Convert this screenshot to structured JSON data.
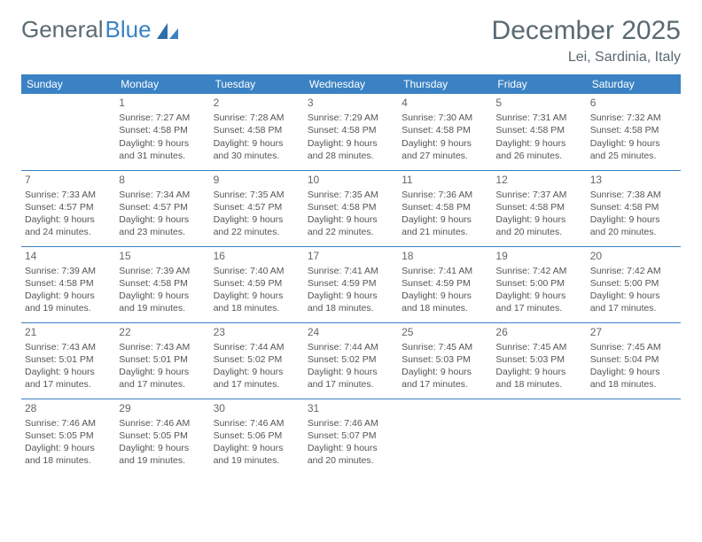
{
  "logo": {
    "word1": "General",
    "word2": "Blue"
  },
  "title": "December 2025",
  "location": "Lei, Sardinia, Italy",
  "colors": {
    "header_bg": "#3b82c4",
    "header_text": "#ffffff",
    "border": "#3b82c4",
    "body_text": "#555555",
    "title_text": "#5a6a72",
    "background": "#ffffff"
  },
  "day_headers": [
    "Sunday",
    "Monday",
    "Tuesday",
    "Wednesday",
    "Thursday",
    "Friday",
    "Saturday"
  ],
  "weeks": [
    [
      {
        "num": "",
        "lines": []
      },
      {
        "num": "1",
        "lines": [
          "Sunrise: 7:27 AM",
          "Sunset: 4:58 PM",
          "Daylight: 9 hours",
          "and 31 minutes."
        ]
      },
      {
        "num": "2",
        "lines": [
          "Sunrise: 7:28 AM",
          "Sunset: 4:58 PM",
          "Daylight: 9 hours",
          "and 30 minutes."
        ]
      },
      {
        "num": "3",
        "lines": [
          "Sunrise: 7:29 AM",
          "Sunset: 4:58 PM",
          "Daylight: 9 hours",
          "and 28 minutes."
        ]
      },
      {
        "num": "4",
        "lines": [
          "Sunrise: 7:30 AM",
          "Sunset: 4:58 PM",
          "Daylight: 9 hours",
          "and 27 minutes."
        ]
      },
      {
        "num": "5",
        "lines": [
          "Sunrise: 7:31 AM",
          "Sunset: 4:58 PM",
          "Daylight: 9 hours",
          "and 26 minutes."
        ]
      },
      {
        "num": "6",
        "lines": [
          "Sunrise: 7:32 AM",
          "Sunset: 4:58 PM",
          "Daylight: 9 hours",
          "and 25 minutes."
        ]
      }
    ],
    [
      {
        "num": "7",
        "lines": [
          "Sunrise: 7:33 AM",
          "Sunset: 4:57 PM",
          "Daylight: 9 hours",
          "and 24 minutes."
        ]
      },
      {
        "num": "8",
        "lines": [
          "Sunrise: 7:34 AM",
          "Sunset: 4:57 PM",
          "Daylight: 9 hours",
          "and 23 minutes."
        ]
      },
      {
        "num": "9",
        "lines": [
          "Sunrise: 7:35 AM",
          "Sunset: 4:57 PM",
          "Daylight: 9 hours",
          "and 22 minutes."
        ]
      },
      {
        "num": "10",
        "lines": [
          "Sunrise: 7:35 AM",
          "Sunset: 4:58 PM",
          "Daylight: 9 hours",
          "and 22 minutes."
        ]
      },
      {
        "num": "11",
        "lines": [
          "Sunrise: 7:36 AM",
          "Sunset: 4:58 PM",
          "Daylight: 9 hours",
          "and 21 minutes."
        ]
      },
      {
        "num": "12",
        "lines": [
          "Sunrise: 7:37 AM",
          "Sunset: 4:58 PM",
          "Daylight: 9 hours",
          "and 20 minutes."
        ]
      },
      {
        "num": "13",
        "lines": [
          "Sunrise: 7:38 AM",
          "Sunset: 4:58 PM",
          "Daylight: 9 hours",
          "and 20 minutes."
        ]
      }
    ],
    [
      {
        "num": "14",
        "lines": [
          "Sunrise: 7:39 AM",
          "Sunset: 4:58 PM",
          "Daylight: 9 hours",
          "and 19 minutes."
        ]
      },
      {
        "num": "15",
        "lines": [
          "Sunrise: 7:39 AM",
          "Sunset: 4:58 PM",
          "Daylight: 9 hours",
          "and 19 minutes."
        ]
      },
      {
        "num": "16",
        "lines": [
          "Sunrise: 7:40 AM",
          "Sunset: 4:59 PM",
          "Daylight: 9 hours",
          "and 18 minutes."
        ]
      },
      {
        "num": "17",
        "lines": [
          "Sunrise: 7:41 AM",
          "Sunset: 4:59 PM",
          "Daylight: 9 hours",
          "and 18 minutes."
        ]
      },
      {
        "num": "18",
        "lines": [
          "Sunrise: 7:41 AM",
          "Sunset: 4:59 PM",
          "Daylight: 9 hours",
          "and 18 minutes."
        ]
      },
      {
        "num": "19",
        "lines": [
          "Sunrise: 7:42 AM",
          "Sunset: 5:00 PM",
          "Daylight: 9 hours",
          "and 17 minutes."
        ]
      },
      {
        "num": "20",
        "lines": [
          "Sunrise: 7:42 AM",
          "Sunset: 5:00 PM",
          "Daylight: 9 hours",
          "and 17 minutes."
        ]
      }
    ],
    [
      {
        "num": "21",
        "lines": [
          "Sunrise: 7:43 AM",
          "Sunset: 5:01 PM",
          "Daylight: 9 hours",
          "and 17 minutes."
        ]
      },
      {
        "num": "22",
        "lines": [
          "Sunrise: 7:43 AM",
          "Sunset: 5:01 PM",
          "Daylight: 9 hours",
          "and 17 minutes."
        ]
      },
      {
        "num": "23",
        "lines": [
          "Sunrise: 7:44 AM",
          "Sunset: 5:02 PM",
          "Daylight: 9 hours",
          "and 17 minutes."
        ]
      },
      {
        "num": "24",
        "lines": [
          "Sunrise: 7:44 AM",
          "Sunset: 5:02 PM",
          "Daylight: 9 hours",
          "and 17 minutes."
        ]
      },
      {
        "num": "25",
        "lines": [
          "Sunrise: 7:45 AM",
          "Sunset: 5:03 PM",
          "Daylight: 9 hours",
          "and 17 minutes."
        ]
      },
      {
        "num": "26",
        "lines": [
          "Sunrise: 7:45 AM",
          "Sunset: 5:03 PM",
          "Daylight: 9 hours",
          "and 18 minutes."
        ]
      },
      {
        "num": "27",
        "lines": [
          "Sunrise: 7:45 AM",
          "Sunset: 5:04 PM",
          "Daylight: 9 hours",
          "and 18 minutes."
        ]
      }
    ],
    [
      {
        "num": "28",
        "lines": [
          "Sunrise: 7:46 AM",
          "Sunset: 5:05 PM",
          "Daylight: 9 hours",
          "and 18 minutes."
        ]
      },
      {
        "num": "29",
        "lines": [
          "Sunrise: 7:46 AM",
          "Sunset: 5:05 PM",
          "Daylight: 9 hours",
          "and 19 minutes."
        ]
      },
      {
        "num": "30",
        "lines": [
          "Sunrise: 7:46 AM",
          "Sunset: 5:06 PM",
          "Daylight: 9 hours",
          "and 19 minutes."
        ]
      },
      {
        "num": "31",
        "lines": [
          "Sunrise: 7:46 AM",
          "Sunset: 5:07 PM",
          "Daylight: 9 hours",
          "and 20 minutes."
        ]
      },
      {
        "num": "",
        "lines": []
      },
      {
        "num": "",
        "lines": []
      },
      {
        "num": "",
        "lines": []
      }
    ]
  ]
}
